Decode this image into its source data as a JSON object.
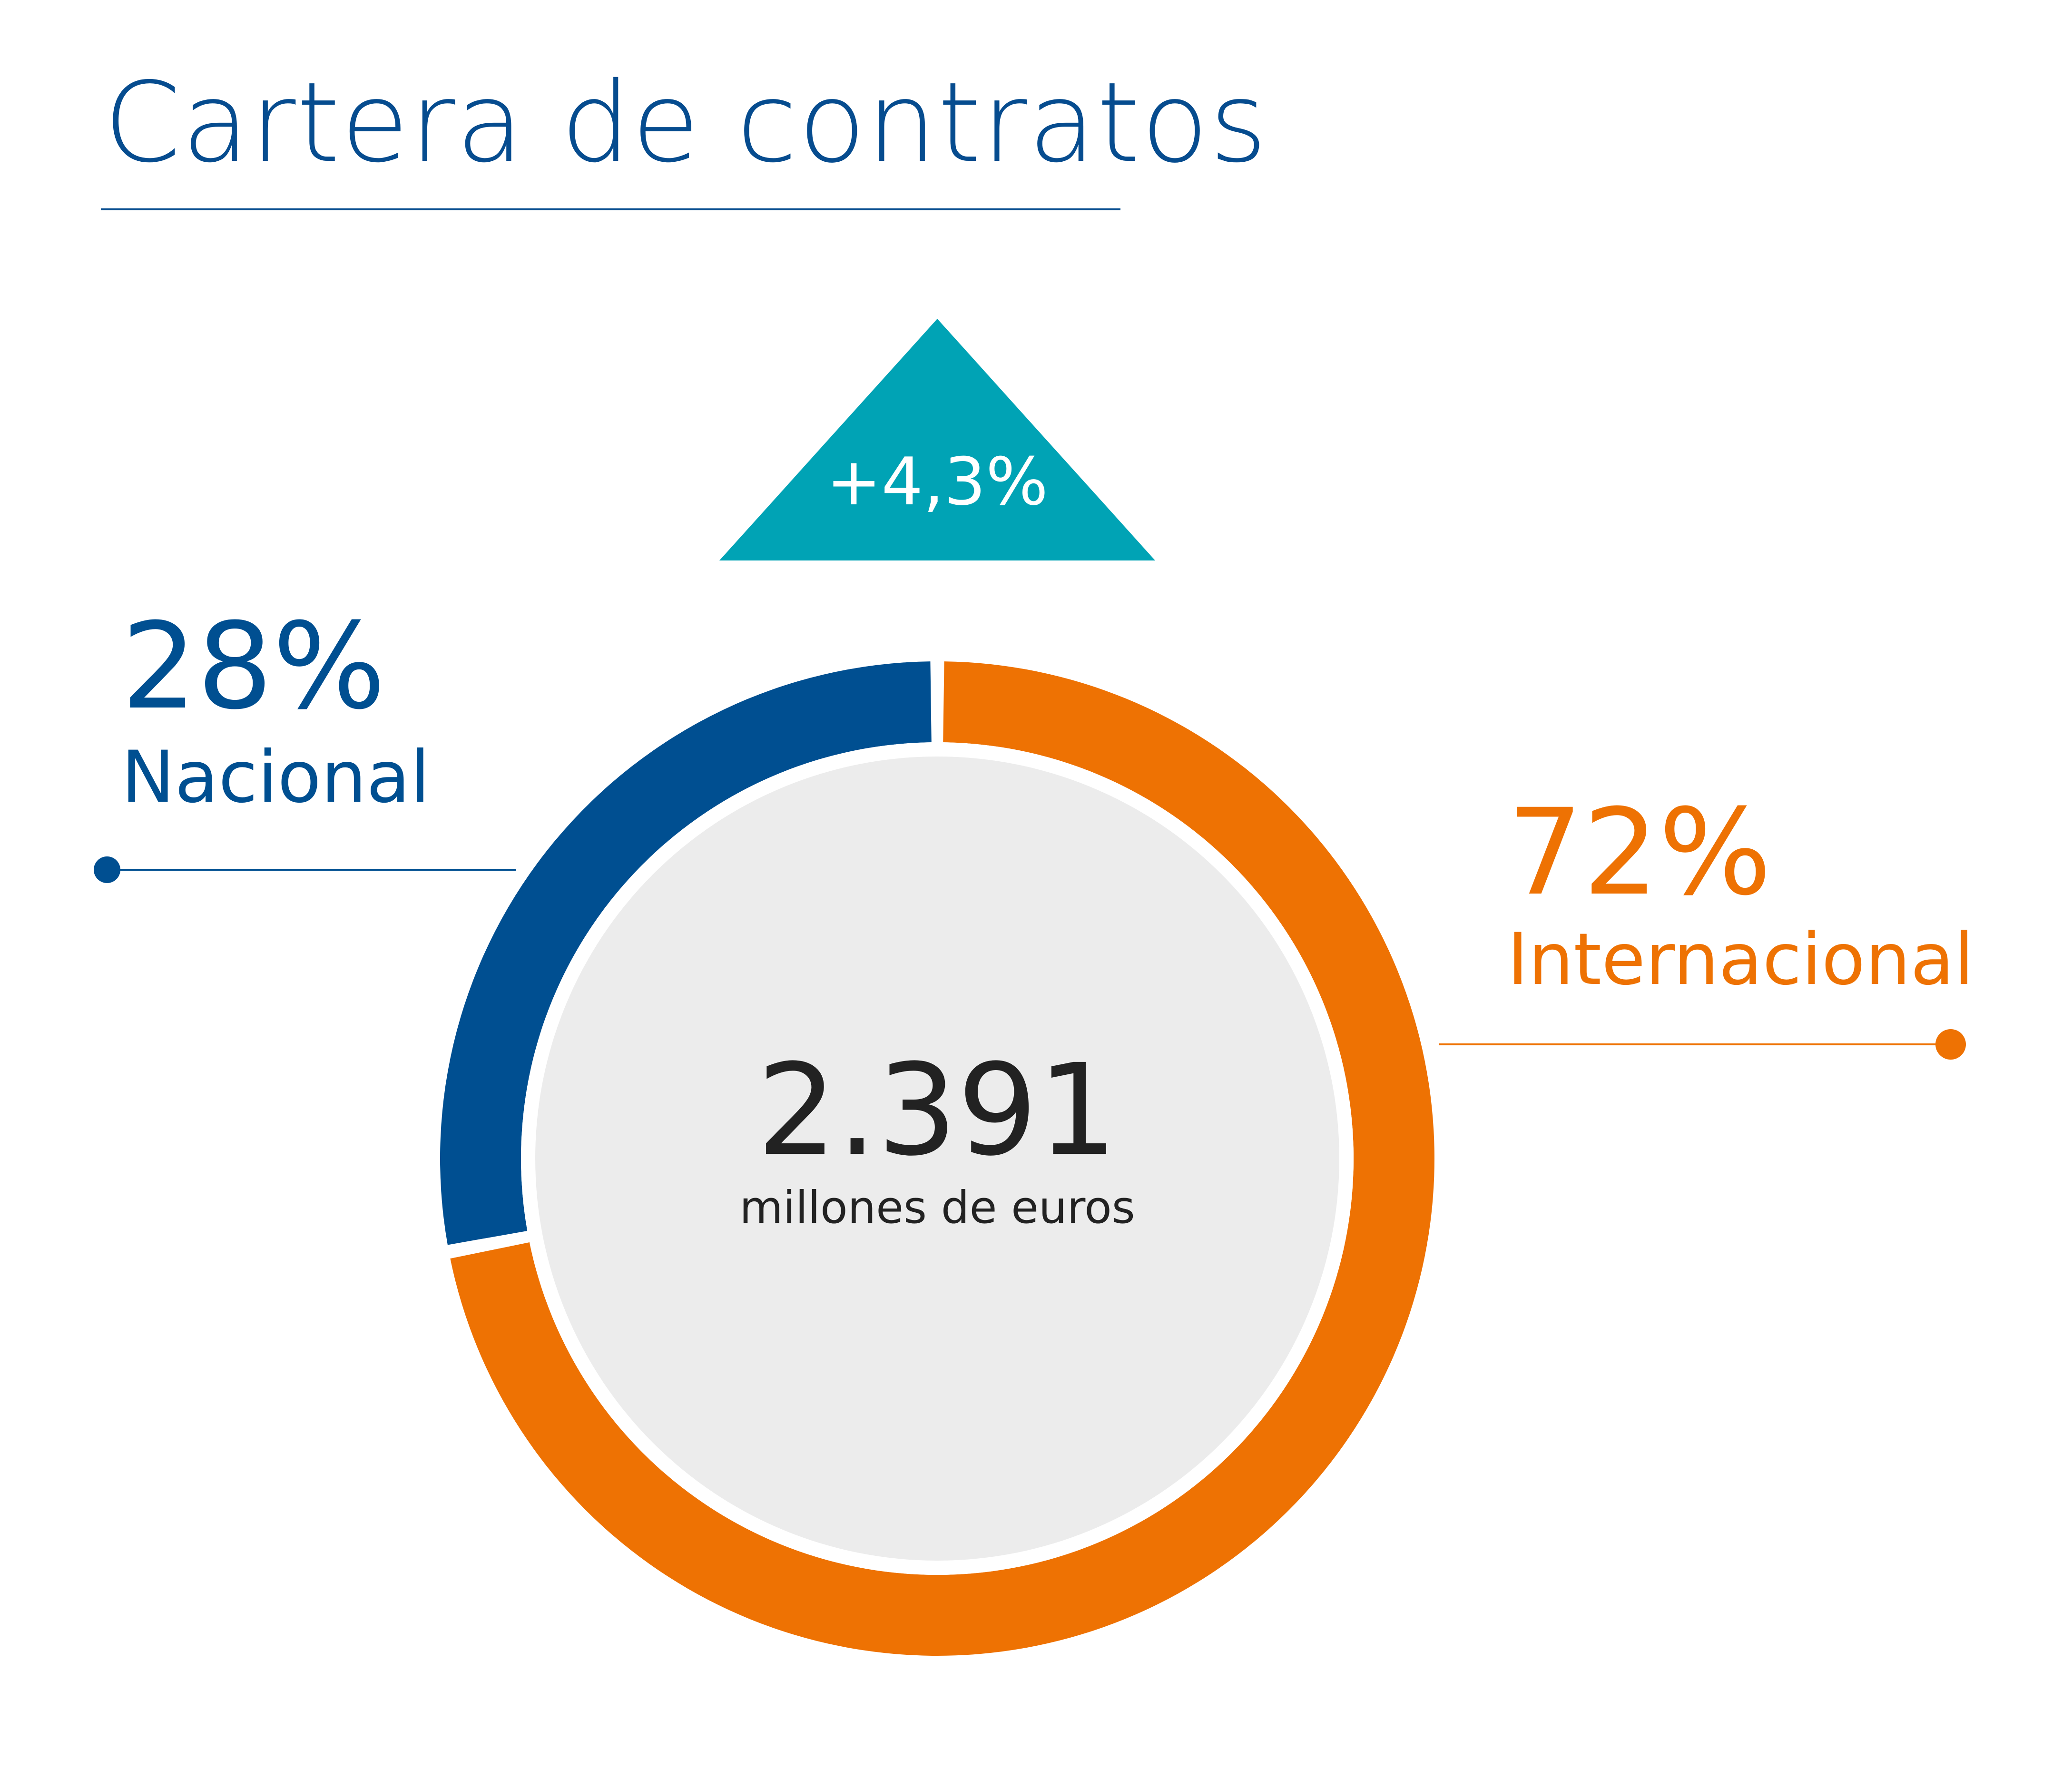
{
  "title": "Cartera de contratos",
  "change": "+4,3%",
  "total_value": "2.391",
  "total_unit": "millones de euros",
  "colors": {
    "title": "#064c8f",
    "nacional": "#004f91",
    "internacional": "#ee7203",
    "badge": "#00a3b5",
    "inner_circle": "#ececec"
  },
  "chart_data": {
    "type": "pie",
    "style": "donut",
    "categories": [
      "Nacional",
      "Internacional"
    ],
    "values": [
      28,
      72
    ],
    "labels": [
      "28%",
      "72%"
    ],
    "total": 2391,
    "total_unit": "millones de euros",
    "change": "+4,3%",
    "title": "Cartera de contratos"
  }
}
